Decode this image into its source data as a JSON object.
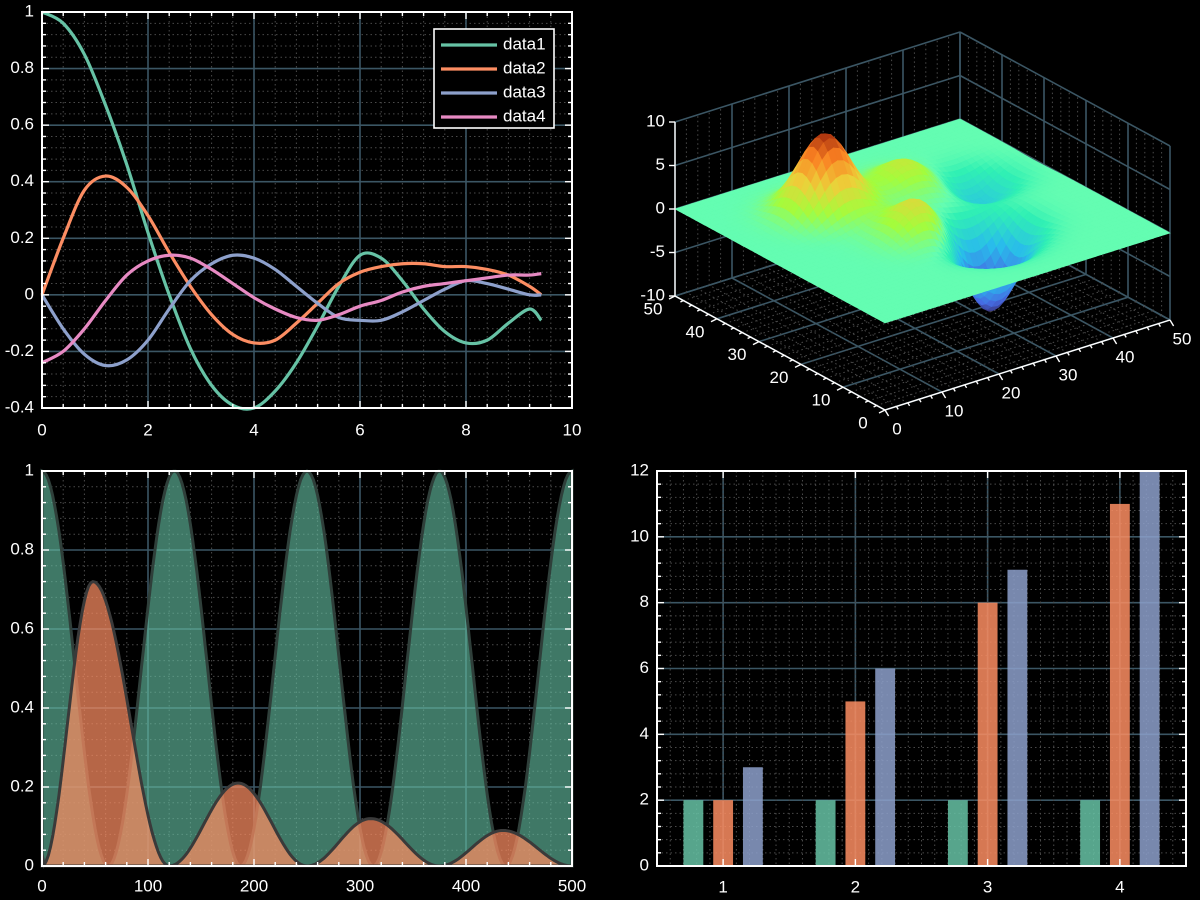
{
  "colors": {
    "background": "#000000",
    "axis": "#ffffff",
    "grid_major": "#3b5664",
    "grid_minor": "#4a4a4a",
    "teal": "#66c2a5",
    "orange": "#fc8d62",
    "lavender": "#8da0cb",
    "pink": "#e78ac3"
  },
  "chart_data": [
    {
      "type": "line",
      "title": "",
      "xlabel": "",
      "ylabel": "",
      "xlim": [
        0,
        10
      ],
      "ylim": [
        -0.4,
        1
      ],
      "xticks": [
        "0",
        "2",
        "4",
        "6",
        "8",
        "10"
      ],
      "yticks": [
        "-0.4",
        "-0.2",
        "0",
        "0.2",
        "0.4",
        "0.6",
        "0.8",
        "1"
      ],
      "grid": true,
      "legend_position": "top-right",
      "x": [
        0,
        0.4,
        0.8,
        1.2,
        1.6,
        2.0,
        2.4,
        2.8,
        3.2,
        3.6,
        4.0,
        4.4,
        4.8,
        5.2,
        5.6,
        6.0,
        6.4,
        6.8,
        7.2,
        7.6,
        8.0,
        8.4,
        8.8,
        9.2,
        9.42
      ],
      "series": [
        {
          "name": "data1",
          "color": "#66c2a5",
          "values": [
            1.0,
            0.96,
            0.85,
            0.67,
            0.46,
            0.22,
            0.0,
            -0.19,
            -0.32,
            -0.39,
            -0.4,
            -0.34,
            -0.24,
            -0.11,
            0.03,
            0.14,
            0.13,
            0.05,
            -0.05,
            -0.13,
            -0.17,
            -0.16,
            -0.1,
            -0.05,
            -0.09
          ]
        },
        {
          "name": "data2",
          "color": "#fc8d62",
          "values": [
            0,
            0.2,
            0.37,
            0.42,
            0.38,
            0.28,
            0.15,
            0.03,
            -0.07,
            -0.14,
            -0.17,
            -0.16,
            -0.1,
            -0.03,
            0.04,
            0.08,
            0.1,
            0.11,
            0.11,
            0.1,
            0.1,
            0.09,
            0.07,
            0.03,
            0
          ]
        },
        {
          "name": "data3",
          "color": "#8da0cb",
          "values": [
            0,
            -0.12,
            -0.21,
            -0.25,
            -0.23,
            -0.16,
            -0.05,
            0.05,
            0.11,
            0.14,
            0.13,
            0.09,
            0.03,
            -0.03,
            -0.08,
            -0.09,
            -0.09,
            -0.06,
            -0.02,
            0.02,
            0.05,
            0.04,
            0.02,
            0.0,
            0
          ]
        },
        {
          "name": "data4",
          "color": "#e78ac3",
          "values": [
            -0.24,
            -0.2,
            -0.12,
            -0.02,
            0.07,
            0.12,
            0.14,
            0.13,
            0.09,
            0.04,
            -0.01,
            -0.05,
            -0.08,
            -0.09,
            -0.07,
            -0.04,
            -0.02,
            0.01,
            0.03,
            0.04,
            0.05,
            0.06,
            0.07,
            0.07,
            0.075
          ]
        }
      ]
    },
    {
      "type": "surface",
      "title": "",
      "xlim": [
        0,
        50
      ],
      "ylim": [
        0,
        50
      ],
      "zlim": [
        -10,
        10
      ],
      "xticks": [
        "0",
        "10",
        "20",
        "30",
        "40",
        "50"
      ],
      "yticks": [
        "0",
        "10",
        "20",
        "30",
        "40",
        "50"
      ],
      "zticks": [
        "-10",
        "-5",
        "0",
        "5",
        "10"
      ],
      "grid": true,
      "colormap": "turbo",
      "peaks": [
        {
          "x": 16,
          "y": 36,
          "z": 9
        },
        {
          "x": 22,
          "y": 22,
          "z": 4
        },
        {
          "x": 30,
          "y": 36,
          "z": 3
        },
        {
          "x": 40,
          "y": 32,
          "z": -3
        },
        {
          "x": 32,
          "y": 18,
          "z": -7
        },
        {
          "x": 28,
          "y": 14,
          "z": -5
        }
      ]
    },
    {
      "type": "area",
      "title": "",
      "xlim": [
        0,
        500
      ],
      "ylim": [
        0,
        1
      ],
      "xticks": [
        "0",
        "100",
        "200",
        "300",
        "400",
        "500"
      ],
      "yticks": [
        "0",
        "0.2",
        "0.4",
        "0.6",
        "0.8",
        "1"
      ],
      "grid": true,
      "x": [
        0,
        31.25,
        62.5,
        125,
        187.5,
        250,
        312.5,
        375,
        437.5,
        500
      ],
      "series": [
        {
          "color": "#66c2a5",
          "values": [
            1,
            0.5,
            0,
            1,
            0,
            1,
            0,
            1,
            0,
            1
          ],
          "curve": "cos^2 with period 125"
        },
        {
          "color": "#fc8d62",
          "peaks": [
            [
              48,
              0.72
            ],
            [
              185,
              0.21
            ],
            [
              310,
              0.12
            ],
            [
              435,
              0.09
            ]
          ],
          "zeros": [
            0,
            120,
            250,
            375,
            500
          ]
        }
      ]
    },
    {
      "type": "bar",
      "title": "",
      "categories": [
        "1",
        "2",
        "3",
        "4"
      ],
      "ylim": [
        0,
        12
      ],
      "yticks": [
        "0",
        "2",
        "4",
        "6",
        "8",
        "10",
        "12"
      ],
      "grid": true,
      "series": [
        {
          "color": "#66c2a5",
          "values": [
            2,
            2,
            2,
            2
          ]
        },
        {
          "color": "#fc8d62",
          "values": [
            2,
            5,
            8,
            11
          ]
        },
        {
          "color": "#8da0cb",
          "values": [
            3,
            6,
            9,
            12
          ]
        }
      ]
    }
  ]
}
